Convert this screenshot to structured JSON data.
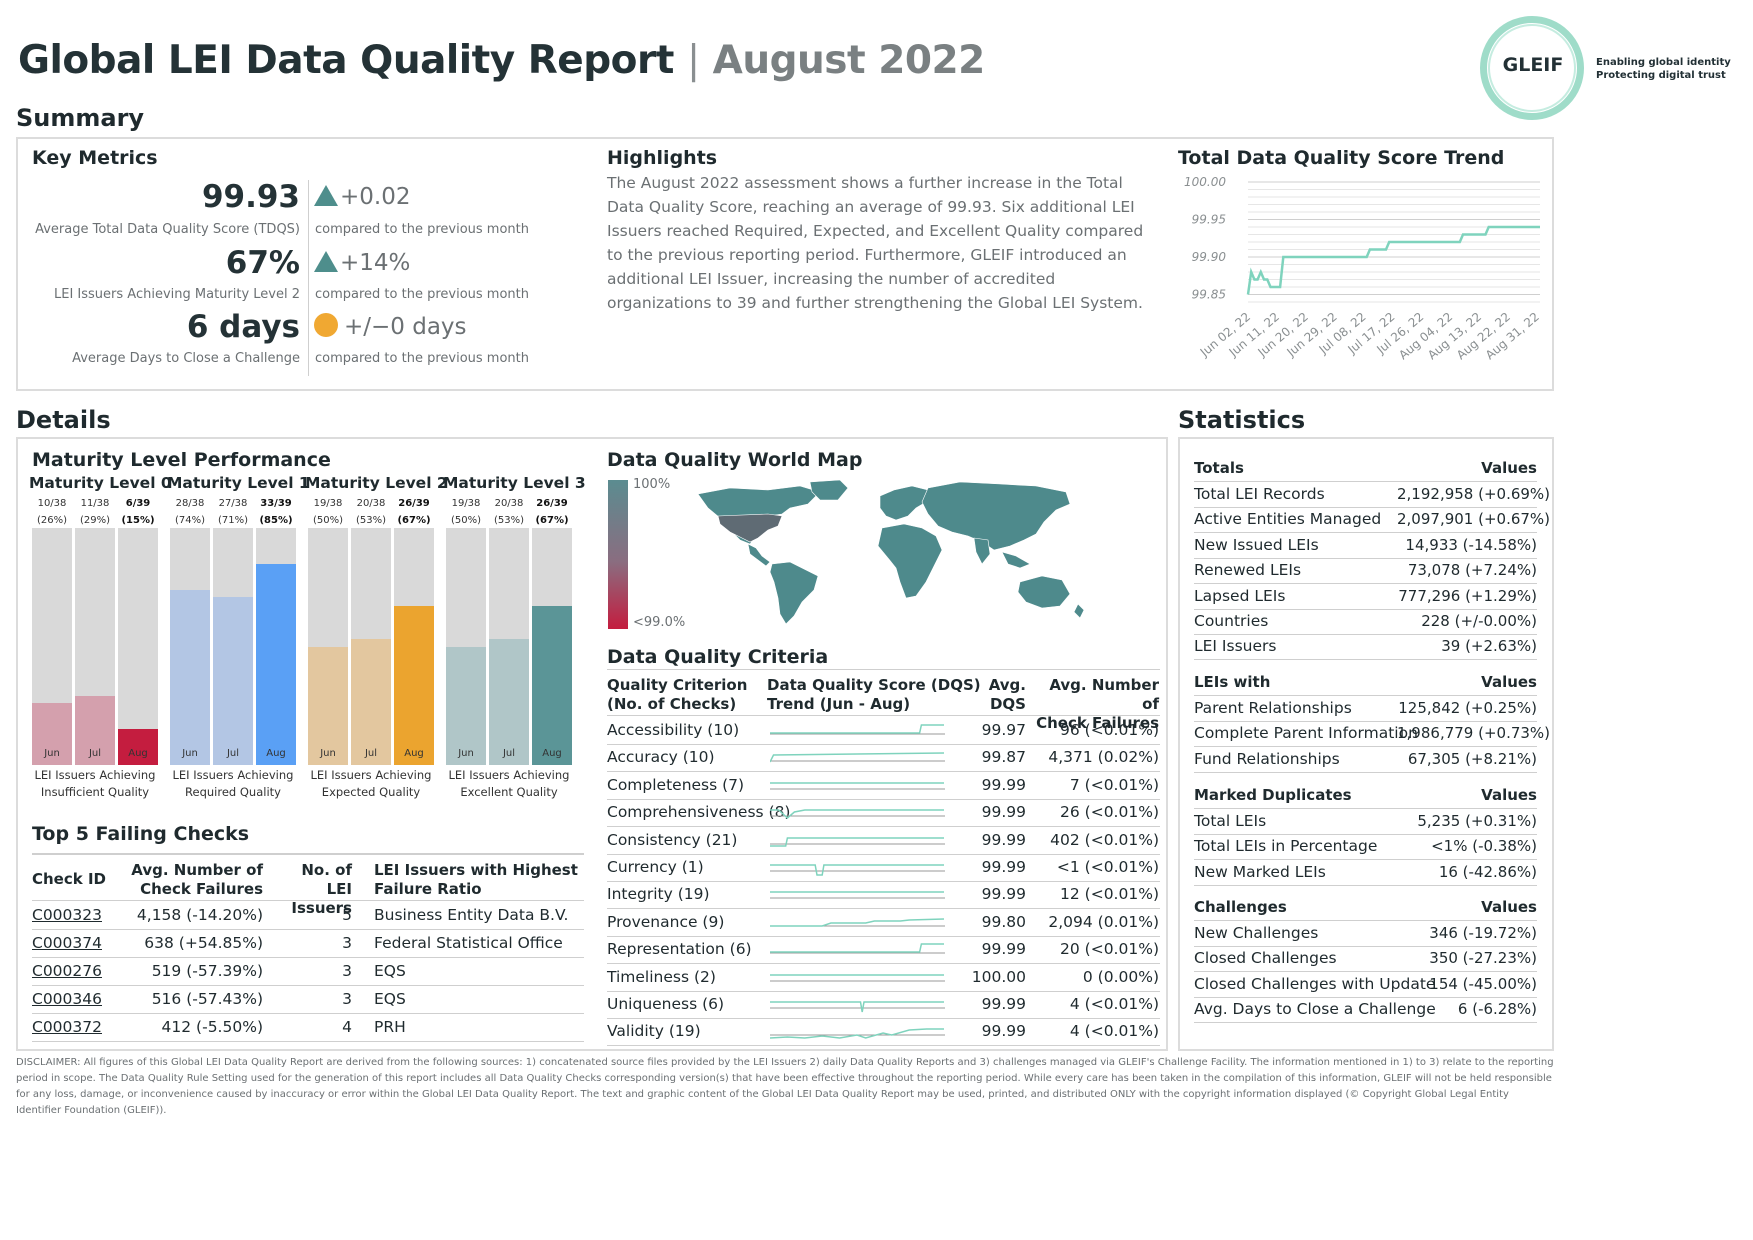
{
  "header": {
    "title_main": "Global LEI Data Quality Report",
    "title_sep": "|",
    "title_month": "August 2022",
    "logo_word": "GLEIF",
    "logo_tagline_1": "Enabling global identity",
    "logo_tagline_2": "Protecting digital trust"
  },
  "summary": {
    "section_title": "Summary",
    "key_metrics_title": "Key Metrics",
    "metrics": [
      {
        "value": "99.93",
        "label": "Average Total Data Quality Score (TDQS)",
        "delta": "+0.02",
        "trend": "up",
        "compare": "compared to the previous month"
      },
      {
        "value": "67%",
        "label": "LEI Issuers Achieving Maturity Level 2",
        "delta": "+14%",
        "trend": "up",
        "compare": "compared to the previous month"
      },
      {
        "value": "6 days",
        "label": "Average Days to Close a Challenge",
        "delta": "+/−0 days",
        "trend": "flat",
        "compare": "compared to the previous month"
      }
    ],
    "highlights_title": "Highlights",
    "highlights_text": "The August 2022 assessment shows a further increase in the Total Data Quality Score, reaching an average of 99.93. Six additional LEI Issuers reached Required, Expected, and Excellent Quality compared to the previous reporting period. Furthermore, GLEIF introduced an additional LEI Issuer, increasing the number of accredited organizations to 39 and further strengthening the Global LEI System.",
    "trend_title": "Total Data Quality Score Trend"
  },
  "chart_data": [
    {
      "type": "line",
      "title": "Total Data Quality Score Trend",
      "x_tick_labels": [
        "Jun 02, 22",
        "Jun 11, 22",
        "Jun 20, 22",
        "Jun 29, 22",
        "Jul 08, 22",
        "Jul 17, 22",
        "Jul 26, 22",
        "Aug 04, 22",
        "Aug 13, 22",
        "Aug 22, 22",
        "Aug 31, 22"
      ],
      "y_tick_labels": [
        "100.00",
        "99.95",
        "99.90",
        "99.85"
      ],
      "ylim": [
        99.84,
        100.0
      ],
      "x_range": [
        "2022-06-01",
        "2022-08-31"
      ],
      "grid": true,
      "color": "#7fd3bd",
      "series": [
        {
          "x": [
            "2022-06-01",
            "2022-06-02",
            "2022-06-03",
            "2022-06-04",
            "2022-06-05",
            "2022-06-06",
            "2022-06-07",
            "2022-06-08",
            "2022-06-09",
            "2022-06-10",
            "2022-06-11",
            "2022-06-12",
            "2022-06-14",
            "2022-06-20",
            "2022-06-21",
            "2022-06-30",
            "2022-07-01",
            "2022-07-08",
            "2022-07-09",
            "2022-07-14",
            "2022-07-15",
            "2022-07-20",
            "2022-07-21",
            "2022-08-06",
            "2022-08-07",
            "2022-08-14",
            "2022-08-15",
            "2022-08-31"
          ],
          "y": [
            99.85,
            99.88,
            99.87,
            99.87,
            99.88,
            99.87,
            99.87,
            99.86,
            99.86,
            99.86,
            99.86,
            99.9,
            99.9,
            99.9,
            99.9,
            99.9,
            99.9,
            99.9,
            99.91,
            99.91,
            99.92,
            99.92,
            99.92,
            99.92,
            99.93,
            99.93,
            99.94,
            99.94
          ]
        }
      ]
    },
    {
      "type": "bar",
      "title": "Maturity Level Performance",
      "categories": [
        "Jun",
        "Jul",
        "Aug"
      ],
      "groups": [
        {
          "name": "Maturity Level 0",
          "caption": "LEI Issuers Achieving Insufficient Quality",
          "fractions": [
            "10/38",
            "11/38",
            "6/39"
          ],
          "percents": [
            "(26%)",
            "(29%)",
            "(15%)"
          ],
          "values": [
            26,
            29,
            15
          ],
          "colors": [
            "#d4a0ad",
            "#d4a0ad",
            "#c41d3f"
          ]
        },
        {
          "name": "Maturity Level 1",
          "caption": "LEI Issuers Achieving Required Quality",
          "fractions": [
            "28/38",
            "27/38",
            "33/39"
          ],
          "percents": [
            "(74%)",
            "(71%)",
            "(85%)"
          ],
          "values": [
            74,
            71,
            85
          ],
          "colors": [
            "#b3c6e4",
            "#b3c6e4",
            "#5aa0f5"
          ]
        },
        {
          "name": "Maturity Level 2",
          "caption": "LEI Issuers Achieving Expected Quality",
          "fractions": [
            "19/38",
            "20/38",
            "26/39"
          ],
          "percents": [
            "(50%)",
            "(53%)",
            "(67%)"
          ],
          "values": [
            50,
            53,
            67
          ],
          "colors": [
            "#e3c79f",
            "#e3c79f",
            "#eba42f"
          ]
        },
        {
          "name": "Maturity Level 3",
          "caption": "LEI Issuers Achieving Excellent Quality",
          "fractions": [
            "19/38",
            "20/38",
            "26/39"
          ],
          "percents": [
            "(50%)",
            "(53%)",
            "(67%)"
          ],
          "values": [
            50,
            53,
            67
          ],
          "colors": [
            "#b0c6c8",
            "#b0c6c8",
            "#5b9597"
          ]
        }
      ]
    }
  ],
  "details": {
    "section_title": "Details",
    "maturity_title": "Maturity Level Performance",
    "map_title": "Data Quality World Map",
    "map_legend_top": "100%",
    "map_legend_bottom": "<99.0%",
    "failing_title": "Top 5 Failing Checks",
    "failing_headers": {
      "id": "Check ID",
      "fail1": "Avg. Number of",
      "fail2": "Check Failures",
      "iss1": "No. of",
      "iss2": "LEI Issuers",
      "hi1": "LEI Issuers with Highest",
      "hi2": "Failure Ratio"
    },
    "failing_rows": [
      {
        "id": "C000323",
        "failures": "4,158 (-14.20%)",
        "issuers": "5",
        "highest": "Business Entity Data B.V."
      },
      {
        "id": "C000374",
        "failures": "638 (+54.85%)",
        "issuers": "3",
        "highest": "Federal Statistical Office"
      },
      {
        "id": "C000276",
        "failures": "519 (-57.39%)",
        "issuers": "3",
        "highest": "EQS"
      },
      {
        "id": "C000346",
        "failures": "516 (-57.43%)",
        "issuers": "3",
        "highest": "EQS"
      },
      {
        "id": "C000372",
        "failures": "412 (-5.50%)",
        "issuers": "4",
        "highest": "PRH"
      }
    ],
    "criteria_title": "Data Quality Criteria",
    "criteria_headers": {
      "c1": "Quality Criterion",
      "c2": "(No. of Checks)",
      "t1": "Data Quality Score (DQS)",
      "t2": "Trend (Jun - Aug)",
      "a1": "Avg.",
      "a2": "DQS",
      "f1": "Avg. Number of",
      "f2": "Check Failures"
    },
    "criteria_rows": [
      {
        "name": "Accessibility (10)",
        "dqs": "99.97",
        "failures": "96 (<0.01%)",
        "spark_shape": "late-rise"
      },
      {
        "name": "Accuracy (10)",
        "dqs": "99.87",
        "failures": "4,371 (0.02%)",
        "spark_shape": "early-rise"
      },
      {
        "name": "Completeness (7)",
        "dqs": "99.99",
        "failures": "7 (<0.01%)",
        "spark_shape": "flat"
      },
      {
        "name": "Comprehensiveness (8)",
        "dqs": "99.99",
        "failures": "26 (<0.01%)",
        "spark_shape": "early-dip"
      },
      {
        "name": "Consistency (21)",
        "dqs": "99.99",
        "failures": "402 (<0.01%)",
        "spark_shape": "early-rise-small"
      },
      {
        "name": "Currency (1)",
        "dqs": "99.99",
        "failures": "<1 (<0.01%)",
        "spark_shape": "mid-dip"
      },
      {
        "name": "Integrity (19)",
        "dqs": "99.99",
        "failures": "12 (<0.01%)",
        "spark_shape": "flat"
      },
      {
        "name": "Provenance (9)",
        "dqs": "99.80",
        "failures": "2,094 (0.01%)",
        "spark_shape": "steps"
      },
      {
        "name": "Representation (6)",
        "dqs": "99.99",
        "failures": "20 (<0.01%)",
        "spark_shape": "late-rise"
      },
      {
        "name": "Timeliness (2)",
        "dqs": "100.00",
        "failures": "0 (0.00%)",
        "spark_shape": "flat"
      },
      {
        "name": "Uniqueness (6)",
        "dqs": "99.99",
        "failures": "4 (<0.01%)",
        "spark_shape": "late-dip"
      },
      {
        "name": "Validity (19)",
        "dqs": "99.99",
        "failures": "4 (<0.01%)",
        "spark_shape": "noisy"
      }
    ]
  },
  "statistics": {
    "section_title": "Statistics",
    "groups": [
      {
        "head": "Totals",
        "values_head": "Values",
        "rows": [
          {
            "label": "Total LEI Records",
            "value": "2,192,958 (+0.69%)"
          },
          {
            "label": "Active Entities Managed",
            "value": "2,097,901 (+0.67%)"
          },
          {
            "label": "New Issued LEIs",
            "value": "14,933 (-14.58%)"
          },
          {
            "label": "Renewed LEIs",
            "value": "73,078 (+7.24%)"
          },
          {
            "label": "Lapsed LEIs",
            "value": "777,296 (+1.29%)"
          },
          {
            "label": "Countries",
            "value": "228 (+/-0.00%)"
          },
          {
            "label": "LEI Issuers",
            "value": "39 (+2.63%)"
          }
        ]
      },
      {
        "head": "LEIs with",
        "values_head": "Values",
        "rows": [
          {
            "label": "Parent Relationships",
            "value": "125,842 (+0.25%)"
          },
          {
            "label": "Complete Parent Information",
            "value": "1,986,779 (+0.73%)"
          },
          {
            "label": "Fund Relationships",
            "value": "67,305 (+8.21%)"
          }
        ]
      },
      {
        "head": "Marked Duplicates",
        "values_head": "Values",
        "rows": [
          {
            "label": "Total LEIs",
            "value": "5,235 (+0.31%)"
          },
          {
            "label": "Total LEIs in Percentage",
            "value": "<1% (-0.38%)"
          },
          {
            "label": "New Marked LEIs",
            "value": "16 (-42.86%)"
          }
        ]
      },
      {
        "head": "Challenges",
        "values_head": "Values",
        "rows": [
          {
            "label": "New Challenges",
            "value": "346 (-19.72%)"
          },
          {
            "label": "Closed Challenges",
            "value": "350 (-27.23%)"
          },
          {
            "label": "Closed Challenges with Update",
            "value": "154 (-45.00%)"
          },
          {
            "label": "Avg. Days to Close a Challenge",
            "value": "6 (-6.28%)"
          }
        ]
      }
    ]
  },
  "disclaimer": "DISCLAIMER: All figures of this Global LEI Data Quality Report are derived from the following sources: 1) concatenated source files provided by the LEI Issuers 2) daily Data Quality Reports and 3) challenges managed via GLEIF's Challenge Facility. The information mentioned in 1) to 3) relate to the reporting period in scope. The Data Quality Rule Setting used for the generation of this report includes all Data Quality Checks corresponding version(s) that have been effective throughout the reporting period. While every care has been taken in the compilation of this information, GLEIF will not be held responsible for any loss, damage, or inconvenience caused by inaccuracy or error within the Global LEI Data Quality Report. The text and graphic content of the Global LEI Data Quality Report may be used, printed, and distributed ONLY with the copyright information displayed (© Copyright Global Legal Entity Identifier Foundation (GLEIF)).",
  "colors": {
    "accent_teal": "#4e8e8c",
    "trend_line": "#7fd3bd",
    "map_fill": "#4e8a8c",
    "map_highlight": "#5f6b74",
    "map_scale_top": "#5b8c90",
    "map_scale_bottom": "#c41d3f",
    "neutral_dot": "#f0a832"
  }
}
